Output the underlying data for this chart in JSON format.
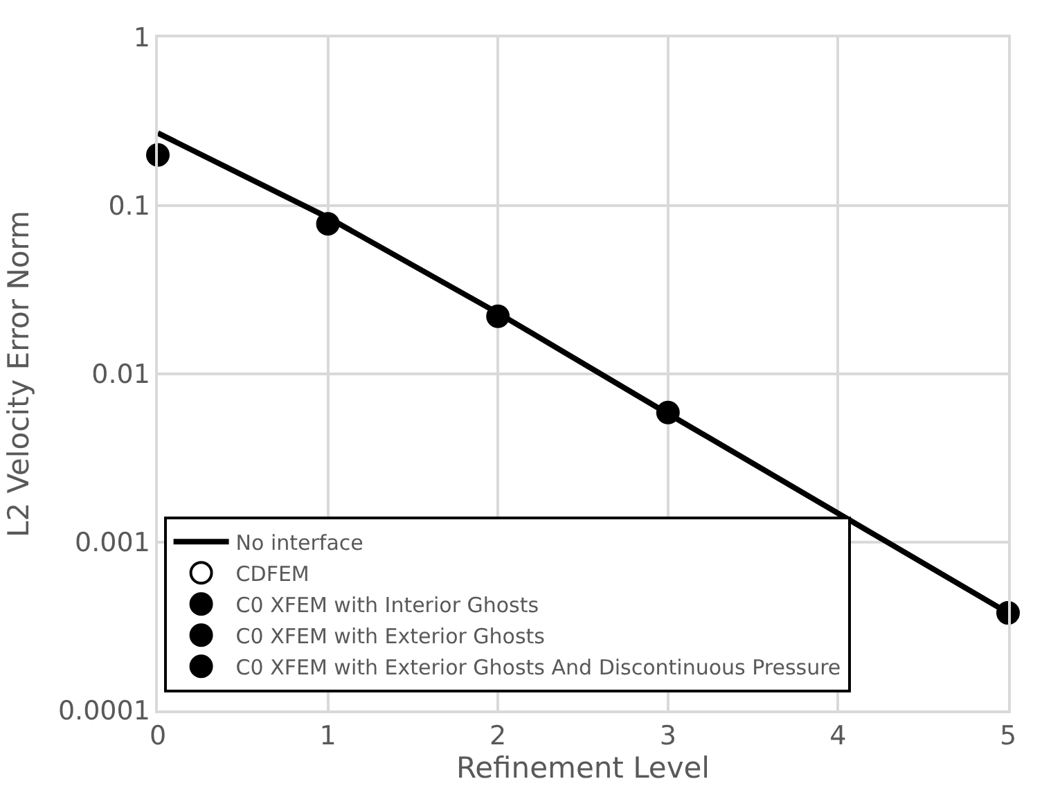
{
  "chart_data": {
    "type": "scatter",
    "xlabel": "Refinement Level",
    "ylabel": "L2 Velocity Error Norm",
    "x": [
      0,
      1,
      2,
      3,
      4,
      5
    ],
    "series": [
      {
        "name": "No interface",
        "type": "line",
        "color": "#000000",
        "marker": "none",
        "line_style": "solid",
        "values": [
          0.27,
          0.085,
          0.023,
          0.0058,
          null,
          0.00038
        ]
      },
      {
        "name": "CDFEM",
        "color": "#ffffff",
        "marker": "circle",
        "values": [
          null,
          null,
          null,
          null,
          null,
          null
        ]
      },
      {
        "name": "C0 XFEM with Interior Ghosts",
        "color": "#000000",
        "marker": "circle",
        "values": [
          0.2,
          0.078,
          0.022,
          0.0059,
          null,
          0.00038
        ]
      },
      {
        "name": "C0 XFEM with Exterior Ghosts",
        "color": "#000000",
        "marker": "circle",
        "values": [
          null,
          null,
          null,
          null,
          null,
          null
        ]
      },
      {
        "name": "C0 XFEM with Exterior Ghosts And Discontinuous Pressure",
        "color": "#000000",
        "marker": "circle",
        "values": [
          null,
          null,
          null,
          null,
          null,
          null
        ]
      }
    ],
    "log": "y",
    "xlim": [
      0,
      5
    ],
    "xticks": [
      0,
      1,
      2,
      3,
      4,
      5
    ],
    "ylim": [
      0.0001,
      1
    ],
    "yticks": [
      0.0001,
      0.001,
      0.01,
      0.1,
      1
    ],
    "grid": true,
    "legend": "bottom"
  }
}
